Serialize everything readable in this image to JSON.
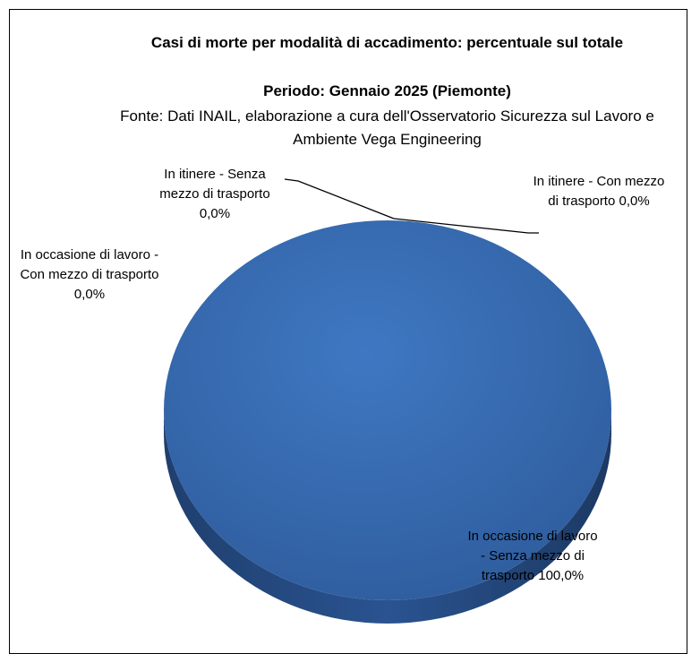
{
  "chart_data": {
    "type": "pie",
    "title": "Casi di morte per modalità di accadimento: percentuale sul totale",
    "subtitle": "Periodo: Gennaio 2025 (Piemonte)",
    "source": "Fonte: Dati INAIL, elaborazione a cura dell'Osservatorio Sicurezza sul Lavoro e Ambiente Vega Engineering",
    "categories": [
      "In occasione di lavoro - Senza mezzo di trasporto",
      "In occasione di lavoro - Con mezzo di trasporto",
      "In itinere - Senza mezzo di trasporto",
      "In itinere - Con mezzo di trasporto"
    ],
    "values": [
      100,
      0,
      0,
      0
    ],
    "value_labels": [
      "100,0%",
      "0,0%",
      "0,0%",
      "0,0%"
    ],
    "colors": [
      "#3a6db3",
      "#b5443f",
      "#8fb04a",
      "#6c4f93"
    ]
  }
}
